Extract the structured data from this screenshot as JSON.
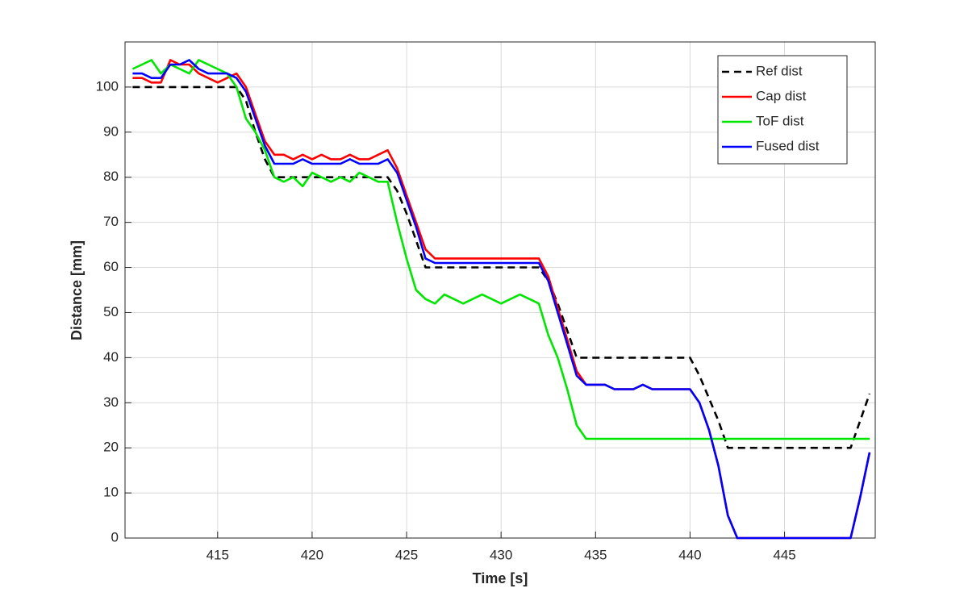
{
  "chart_data": {
    "type": "line",
    "xlabel": "Time [s]",
    "ylabel": "Distance [mm]",
    "x": [
      410.5,
      411,
      411.5,
      412,
      412.5,
      413,
      413.5,
      414,
      414.5,
      415,
      415.5,
      416,
      416.5,
      417,
      417.5,
      418,
      418.5,
      419,
      419.5,
      420,
      420.5,
      421,
      421.5,
      422,
      422.5,
      423,
      423.5,
      424,
      424.5,
      425,
      425.5,
      426,
      426.5,
      427,
      427.5,
      428,
      428.5,
      429,
      429.5,
      430,
      430.5,
      431,
      431.5,
      432,
      432.5,
      433,
      433.5,
      434,
      434.5,
      435,
      435.5,
      436,
      436.5,
      437,
      437.5,
      438,
      438.5,
      439,
      439.5,
      440,
      440.5,
      441,
      441.5,
      442,
      442.5,
      443,
      443.5,
      444,
      444.5,
      445,
      445.5,
      446,
      446.5,
      447,
      447.5,
      448,
      448.5,
      449,
      449.5
    ],
    "series": [
      {
        "name": "Ref dist",
        "color": "#000000",
        "line_style": "dashed",
        "values": [
          100,
          100,
          100,
          100,
          100,
          100,
          100,
          100,
          100,
          100,
          100,
          100,
          97,
          90,
          84,
          80,
          80,
          80,
          80,
          80,
          80,
          80,
          80,
          80,
          80,
          80,
          80,
          80,
          77,
          72,
          66,
          60,
          60,
          60,
          60,
          60,
          60,
          60,
          60,
          60,
          60,
          60,
          60,
          60,
          57,
          52,
          46,
          40,
          40,
          40,
          40,
          40,
          40,
          40,
          40,
          40,
          40,
          40,
          40,
          40,
          36,
          31,
          26,
          20,
          20,
          20,
          20,
          20,
          20,
          20,
          20,
          20,
          20,
          20,
          20,
          20,
          20,
          26,
          32
        ]
      },
      {
        "name": "Cap dist",
        "color": "#ff0000",
        "line_style": "solid",
        "values": [
          102,
          102,
          101,
          101,
          106,
          105,
          105,
          103,
          102,
          101,
          102,
          103,
          100,
          94,
          88,
          85,
          85,
          84,
          85,
          84,
          85,
          84,
          84,
          85,
          84,
          84,
          85,
          86,
          82,
          76,
          70,
          64,
          62,
          62,
          62,
          62,
          62,
          62,
          62,
          62,
          62,
          62,
          62,
          62,
          58,
          51,
          44,
          37,
          34,
          34,
          34,
          33,
          33,
          33,
          34,
          33,
          33,
          33,
          33,
          33,
          30,
          24,
          16,
          5,
          0,
          0,
          0,
          0,
          0,
          0,
          0,
          0,
          0,
          0,
          0,
          0,
          0,
          9,
          19
        ]
      },
      {
        "name": "ToF dist",
        "color": "#00e600",
        "line_style": "solid",
        "values": [
          104,
          105,
          106,
          103,
          105,
          104,
          103,
          106,
          105,
          104,
          103,
          100,
          93,
          90,
          86,
          80,
          79,
          80,
          78,
          81,
          80,
          79,
          80,
          79,
          81,
          80,
          79,
          79,
          70,
          62,
          55,
          53,
          52,
          54,
          53,
          52,
          53,
          54,
          53,
          52,
          53,
          54,
          53,
          52,
          45,
          40,
          33,
          25,
          22,
          22,
          22,
          22,
          22,
          22,
          22,
          22,
          22,
          22,
          22,
          22,
          22,
          22,
          22,
          22,
          22,
          22,
          22,
          22,
          22,
          22,
          22,
          22,
          22,
          22,
          22,
          22,
          22,
          22,
          22
        ]
      },
      {
        "name": "Fused dist",
        "color": "#0000ff",
        "line_style": "solid",
        "values": [
          103,
          103,
          102,
          102,
          105,
          105,
          106,
          104,
          103,
          103,
          103,
          102,
          99,
          93,
          87,
          83,
          83,
          83,
          84,
          83,
          83,
          83,
          83,
          84,
          83,
          83,
          83,
          84,
          81,
          75,
          69,
          62,
          61,
          61,
          61,
          61,
          61,
          61,
          61,
          61,
          61,
          61,
          61,
          61,
          57,
          50,
          43,
          36,
          34,
          34,
          34,
          33,
          33,
          33,
          34,
          33,
          33,
          33,
          33,
          33,
          30,
          24,
          16,
          5,
          0,
          0,
          0,
          0,
          0,
          0,
          0,
          0,
          0,
          0,
          0,
          0,
          0,
          9,
          19
        ]
      }
    ],
    "xlim": [
      410.1,
      449.8
    ],
    "xticks": [
      415,
      420,
      425,
      430,
      435,
      440,
      445
    ],
    "ylim": [
      0,
      110
    ],
    "yticks": [
      0,
      10,
      20,
      30,
      40,
      50,
      60,
      70,
      80,
      90,
      100
    ],
    "grid": true,
    "legend_position": "northeast"
  }
}
